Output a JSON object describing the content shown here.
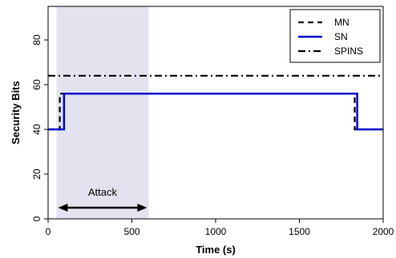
{
  "chart_data": {
    "type": "line",
    "title": "",
    "xlabel": "Time (s)",
    "ylabel": "Security Bits",
    "xlim": [
      0,
      2000
    ],
    "ylim": [
      0,
      95
    ],
    "xticks": [
      0,
      500,
      1000,
      1500,
      2000
    ],
    "yticks": [
      0,
      20,
      40,
      60,
      80
    ],
    "grid": false,
    "legend_position": "top-right",
    "series": [
      {
        "name": "MN",
        "style": "dashed",
        "color": "#000000",
        "points": [
          [
            0,
            40
          ],
          [
            70,
            40
          ],
          [
            70,
            56
          ],
          [
            1830,
            56
          ],
          [
            1830,
            40
          ],
          [
            2000,
            40
          ]
        ]
      },
      {
        "name": "SN",
        "style": "solid",
        "color": "#0000cc",
        "points": [
          [
            0,
            40
          ],
          [
            95,
            40
          ],
          [
            95,
            56
          ],
          [
            1845,
            56
          ],
          [
            1845,
            40
          ],
          [
            2000,
            40
          ]
        ]
      },
      {
        "name": "SPINS",
        "style": "dashdot",
        "color": "#000000",
        "points": [
          [
            0,
            64
          ],
          [
            2000,
            64
          ]
        ]
      }
    ],
    "shaded_region": {
      "x_start": 50,
      "x_end": 600,
      "color": "#e3e3ef"
    },
    "annotations": [
      {
        "text": "Attack",
        "x_start": 50,
        "x_end": 600,
        "y": 5,
        "type": "double-arrow"
      }
    ]
  }
}
